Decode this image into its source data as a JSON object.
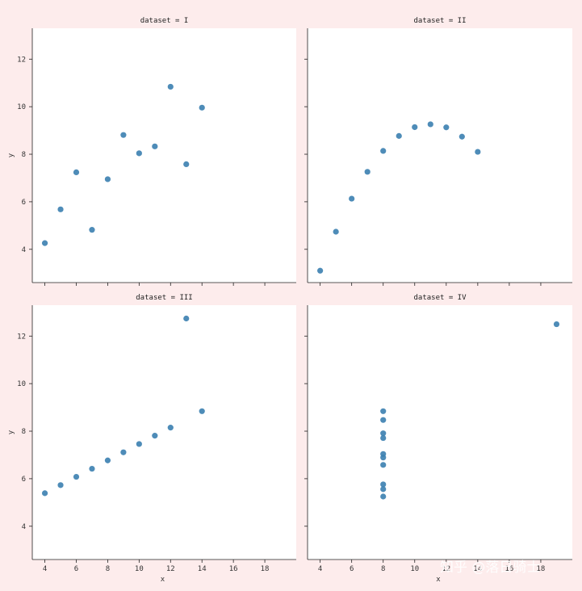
{
  "chart_data": [
    {
      "type": "scatter",
      "title": "dataset = I",
      "xlabel": "",
      "ylabel": "y",
      "x": [
        10,
        8,
        13,
        9,
        11,
        14,
        6,
        4,
        12,
        7,
        5
      ],
      "y": [
        8.04,
        6.95,
        7.58,
        8.81,
        8.33,
        9.96,
        7.24,
        4.26,
        10.84,
        4.82,
        5.68
      ]
    },
    {
      "type": "scatter",
      "title": "dataset = II",
      "xlabel": "",
      "ylabel": "",
      "x": [
        10,
        8,
        13,
        9,
        11,
        14,
        6,
        4,
        12,
        7,
        5
      ],
      "y": [
        9.14,
        8.14,
        8.74,
        8.77,
        9.26,
        8.1,
        6.13,
        3.1,
        9.13,
        7.26,
        4.74
      ]
    },
    {
      "type": "scatter",
      "title": "dataset = III",
      "xlabel": "x",
      "ylabel": "y",
      "x": [
        10,
        8,
        13,
        9,
        11,
        14,
        6,
        4,
        12,
        7,
        5
      ],
      "y": [
        7.46,
        6.77,
        12.74,
        7.11,
        7.81,
        8.84,
        6.08,
        5.39,
        8.15,
        6.42,
        5.73
      ]
    },
    {
      "type": "scatter",
      "title": "dataset = IV",
      "xlabel": "x",
      "ylabel": "",
      "x": [
        8,
        8,
        8,
        8,
        8,
        8,
        8,
        19,
        8,
        8,
        8
      ],
      "y": [
        6.58,
        5.76,
        7.71,
        8.84,
        8.47,
        7.04,
        5.25,
        12.5,
        5.56,
        7.91,
        6.89
      ]
    }
  ],
  "shared_axes": {
    "xlim": [
      3.2,
      20.0
    ],
    "ylim": [
      2.6,
      13.3
    ],
    "xticks": [
      4,
      6,
      8,
      10,
      12,
      14,
      16,
      18
    ],
    "yticks": [
      4,
      6,
      8,
      10,
      12
    ]
  },
  "style": {
    "background": "#fdecec",
    "panel": "#ffffff",
    "marker": "#3b7fb0"
  },
  "watermark": "知乎 @落日骑士"
}
